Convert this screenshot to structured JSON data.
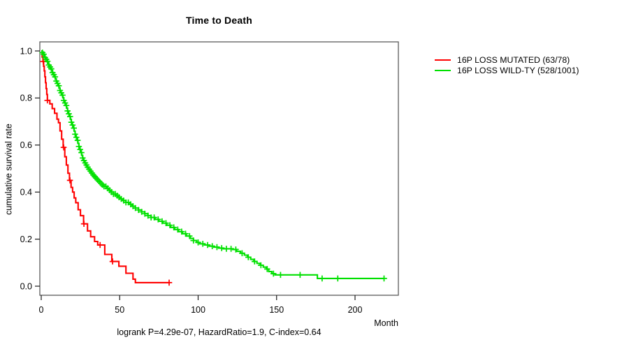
{
  "title": "Time to Death",
  "caption": "logrank P=4.29e-07, HazardRatio=1.9, C-index=0.64",
  "axes": {
    "x": {
      "label": "Month",
      "tick_labels": [
        "0",
        "50",
        "100",
        "150",
        "200"
      ],
      "tick_values": [
        0,
        50,
        100,
        150,
        200
      ]
    },
    "y": {
      "label": "cumulative survival rate",
      "tick_labels": [
        "0.0",
        "0.2",
        "0.4",
        "0.6",
        "0.8",
        "1.0"
      ],
      "tick_values": [
        0,
        0.2,
        0.4,
        0.6,
        0.8,
        1.0
      ]
    }
  },
  "legend": {
    "items": [
      {
        "label": "16P LOSS MUTATED (63/78)",
        "color": "#ff0000"
      },
      {
        "label": "16P LOSS WILD-TY (528/1001)",
        "color": "#00e000"
      }
    ]
  },
  "chart_data": {
    "type": "line",
    "subtype": "kaplan-meier-step",
    "title": "Time to Death",
    "xlabel": "Month",
    "ylabel": "cumulative survival rate",
    "xlim": [
      0,
      227
    ],
    "ylim": [
      0,
      1
    ],
    "grid": false,
    "legend_position": "right-outside",
    "annotation": "logrank P=4.29e-07, HazardRatio=1.9, C-index=0.64",
    "series": [
      {
        "name": "16P LOSS MUTATED (63/78)",
        "color": "#ff0000",
        "points": [
          [
            0,
            1.0
          ],
          [
            0.6,
            0.974
          ],
          [
            1.1,
            0.955
          ],
          [
            1.5,
            0.935
          ],
          [
            1.9,
            0.915
          ],
          [
            2.3,
            0.89
          ],
          [
            2.7,
            0.865
          ],
          [
            3.1,
            0.84
          ],
          [
            3.5,
            0.815
          ],
          [
            3.9,
            0.79
          ],
          [
            5.5,
            0.775
          ],
          [
            7,
            0.755
          ],
          [
            8.5,
            0.735
          ],
          [
            10,
            0.71
          ],
          [
            11,
            0.695
          ],
          [
            12,
            0.66
          ],
          [
            13,
            0.625
          ],
          [
            14,
            0.59
          ],
          [
            15,
            0.55
          ],
          [
            16,
            0.515
          ],
          [
            17,
            0.48
          ],
          [
            18,
            0.45
          ],
          [
            19,
            0.42
          ],
          [
            20,
            0.4
          ],
          [
            21,
            0.375
          ],
          [
            22,
            0.355
          ],
          [
            23.5,
            0.325
          ],
          [
            25,
            0.3
          ],
          [
            27,
            0.265
          ],
          [
            29.5,
            0.235
          ],
          [
            31.5,
            0.21
          ],
          [
            34,
            0.19
          ],
          [
            36,
            0.175
          ],
          [
            40.5,
            0.135
          ],
          [
            45,
            0.105
          ],
          [
            49.5,
            0.085
          ],
          [
            54,
            0.055
          ],
          [
            58.5,
            0.03
          ],
          [
            60,
            0.015
          ],
          [
            82,
            0.015
          ]
        ],
        "censor_times": [
          1.3,
          3.9,
          14.3,
          18.3,
          27.2,
          37.5,
          45.5,
          81.5
        ]
      },
      {
        "name": "16P LOSS WILD-TY (528/1001)",
        "color": "#00e000",
        "points": [
          [
            0,
            1.0
          ],
          [
            0.6,
            0.993
          ],
          [
            1.2,
            0.986
          ],
          [
            1.8,
            0.979
          ],
          [
            2.4,
            0.972
          ],
          [
            3,
            0.964
          ],
          [
            3.6,
            0.956
          ],
          [
            4.2,
            0.948
          ],
          [
            4.8,
            0.94
          ],
          [
            5.4,
            0.932
          ],
          [
            6,
            0.924
          ],
          [
            6.6,
            0.916
          ],
          [
            7.2,
            0.908
          ],
          [
            7.8,
            0.899
          ],
          [
            8.4,
            0.89
          ],
          [
            9,
            0.881
          ],
          [
            9.6,
            0.872
          ],
          [
            10.2,
            0.862
          ],
          [
            10.8,
            0.852
          ],
          [
            11.4,
            0.842
          ],
          [
            12,
            0.832
          ],
          [
            12.6,
            0.822
          ],
          [
            13.2,
            0.812
          ],
          [
            13.8,
            0.801
          ],
          [
            14.4,
            0.79
          ],
          [
            15,
            0.779
          ],
          [
            15.6,
            0.768
          ],
          [
            16.2,
            0.757
          ],
          [
            16.8,
            0.745
          ],
          [
            17.4,
            0.733
          ],
          [
            18,
            0.721
          ],
          [
            18.6,
            0.709
          ],
          [
            19.2,
            0.697
          ],
          [
            19.8,
            0.685
          ],
          [
            20.4,
            0.672
          ],
          [
            21,
            0.659
          ],
          [
            21.6,
            0.646
          ],
          [
            22.2,
            0.633
          ],
          [
            22.8,
            0.62
          ],
          [
            23.4,
            0.607
          ],
          [
            24,
            0.594
          ],
          [
            24.6,
            0.581
          ],
          [
            25.2,
            0.568
          ],
          [
            25.8,
            0.556
          ],
          [
            26.4,
            0.545
          ],
          [
            27,
            0.534
          ],
          [
            27.6,
            0.524
          ],
          [
            28.2,
            0.515
          ],
          [
            29,
            0.506
          ],
          [
            30,
            0.497
          ],
          [
            31,
            0.489
          ],
          [
            32,
            0.481
          ],
          [
            33,
            0.473
          ],
          [
            34,
            0.466
          ],
          [
            35,
            0.459
          ],
          [
            36,
            0.452
          ],
          [
            37,
            0.445
          ],
          [
            38,
            0.438
          ],
          [
            39,
            0.431
          ],
          [
            40,
            0.424
          ],
          [
            41.5,
            0.416
          ],
          [
            43,
            0.408
          ],
          [
            44.5,
            0.4
          ],
          [
            46,
            0.392
          ],
          [
            47.5,
            0.385
          ],
          [
            49,
            0.378
          ],
          [
            50.5,
            0.371
          ],
          [
            52,
            0.364
          ],
          [
            54,
            0.356
          ],
          [
            56,
            0.348
          ],
          [
            58,
            0.34
          ],
          [
            60,
            0.332
          ],
          [
            62,
            0.324
          ],
          [
            64,
            0.316
          ],
          [
            66,
            0.308
          ],
          [
            68,
            0.3
          ],
          [
            70,
            0.292
          ],
          [
            72.5,
            0.284
          ],
          [
            75,
            0.276
          ],
          [
            77.5,
            0.268
          ],
          [
            80,
            0.259
          ],
          [
            82.5,
            0.25
          ],
          [
            85,
            0.241
          ],
          [
            87.5,
            0.232
          ],
          [
            90,
            0.223
          ],
          [
            92.5,
            0.213
          ],
          [
            95,
            0.203
          ],
          [
            97,
            0.194
          ],
          [
            99,
            0.186
          ],
          [
            101,
            0.18
          ],
          [
            104,
            0.175
          ],
          [
            107,
            0.17
          ],
          [
            110,
            0.166
          ],
          [
            113,
            0.162
          ],
          [
            116,
            0.159
          ],
          [
            122,
            0.156
          ],
          [
            124.5,
            0.148
          ],
          [
            127,
            0.14
          ],
          [
            129.5,
            0.132
          ],
          [
            131.5,
            0.123
          ],
          [
            133.5,
            0.114
          ],
          [
            135.5,
            0.105
          ],
          [
            137.5,
            0.097
          ],
          [
            139.5,
            0.089
          ],
          [
            141.5,
            0.081
          ],
          [
            143.5,
            0.073
          ],
          [
            145,
            0.062
          ],
          [
            147,
            0.053
          ],
          [
            149,
            0.048
          ],
          [
            176,
            0.033
          ],
          [
            218.5,
            0.033
          ]
        ],
        "censor_times": [
          0.8,
          1.6,
          2.4,
          3.2,
          4,
          4.8,
          5.6,
          6.4,
          7.2,
          8,
          8.8,
          9.6,
          10.4,
          11.2,
          12,
          12.8,
          13.6,
          14.4,
          15.2,
          16,
          16.8,
          17.6,
          18.4,
          19.2,
          20,
          20.8,
          21.6,
          22.4,
          23.2,
          24,
          24.8,
          25.6,
          26.4,
          27.2,
          28,
          28.8,
          29.6,
          30.5,
          31.4,
          32.3,
          33.2,
          34.1,
          35,
          36,
          37,
          38,
          39,
          40,
          41.2,
          42.4,
          43.6,
          44.8,
          46,
          47.2,
          48.4,
          49.6,
          51,
          52.5,
          54,
          55.5,
          57,
          58.5,
          60,
          62,
          64,
          66,
          68,
          70,
          72,
          74.5,
          77,
          79.5,
          82,
          84.5,
          87,
          89.5,
          92,
          94.5,
          97,
          100,
          103,
          106,
          109,
          112,
          115,
          118,
          121,
          124,
          128,
          132,
          136,
          140,
          144,
          148,
          152.5,
          165,
          179,
          189,
          218.5
        ]
      }
    ]
  }
}
